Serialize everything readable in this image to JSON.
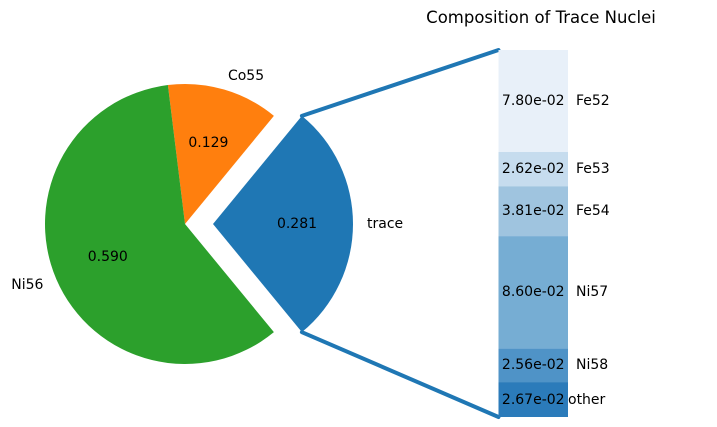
{
  "title": "Composition of Trace Nuclei",
  "colors": {
    "pie_green": "#2ca02c",
    "pie_orange": "#ff7f0e",
    "pie_blue": "#1f77b4",
    "connector_blue": "#1f77b4",
    "background": "#ffffff",
    "text": "#000000"
  },
  "chart_data": [
    {
      "type": "pie",
      "role": "main-composition-pie",
      "counterclockwise": true,
      "exploded_slice": "trace",
      "slices": [
        {
          "label": "Ni56",
          "value": 0.59,
          "value_label": "0.590",
          "color": "#2ca02c",
          "exploded": false
        },
        {
          "label": "Co55",
          "value": 0.129,
          "value_label": "0.129",
          "color": "#ff7f0e",
          "exploded": false
        },
        {
          "label": "trace",
          "value": 0.281,
          "value_label": "0.281",
          "color": "#1f77b4",
          "exploded": true
        }
      ]
    },
    {
      "type": "bar",
      "role": "trace-breakdown-stacked-bar",
      "stacked": true,
      "legend_position": "right-of-bar",
      "segments": [
        {
          "label": "Fe52",
          "value": 0.078,
          "value_label": "7.80e-02",
          "color": "#e8f0f9"
        },
        {
          "label": "Fe53",
          "value": 0.0262,
          "value_label": "2.62e-02",
          "color": "#c6dcee"
        },
        {
          "label": "Fe54",
          "value": 0.0381,
          "value_label": "3.81e-02",
          "color": "#9fc4df"
        },
        {
          "label": "Ni57",
          "value": 0.086,
          "value_label": "8.60e-02",
          "color": "#76add3"
        },
        {
          "label": "Ni58",
          "value": 0.0256,
          "value_label": "2.56e-02",
          "color": "#4f93c7"
        },
        {
          "label": "other",
          "value": 0.0267,
          "value_label": "2.67e-02",
          "color": "#2b7bba"
        }
      ]
    }
  ]
}
